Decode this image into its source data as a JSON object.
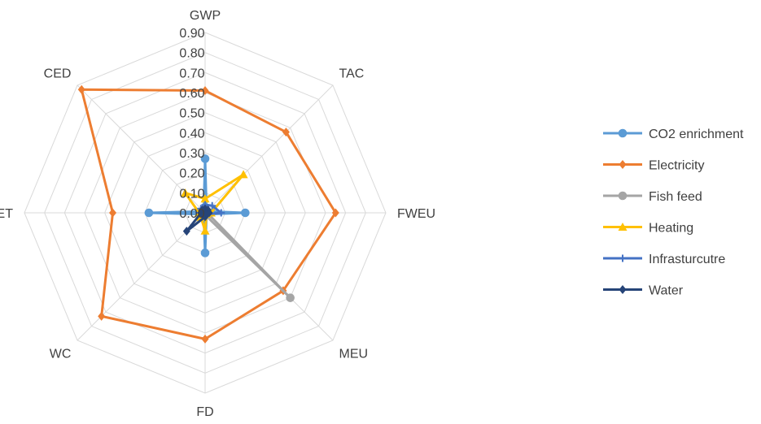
{
  "chart_data": {
    "type": "radar",
    "axes": [
      "GWP",
      "TAC",
      "FWEU",
      "MEU",
      "FD",
      "WC",
      "ET",
      "CED"
    ],
    "ticks": [
      "0.00",
      "0.10",
      "0.20",
      "0.30",
      "0.40",
      "0.50",
      "0.60",
      "0.70",
      "0.80",
      "0.90"
    ],
    "rlim": [
      0,
      0.9
    ],
    "grid": true,
    "legend_position": "right",
    "series": [
      {
        "name": "CO2 enrichment",
        "color": "#5b9bd5",
        "marker": "circle",
        "values": [
          0.27,
          0.01,
          0.2,
          0.01,
          0.2,
          0.01,
          0.28,
          0.01
        ]
      },
      {
        "name": "Electricity",
        "color": "#ed7d31",
        "marker": "diamond",
        "values": [
          0.61,
          0.57,
          0.65,
          0.55,
          0.63,
          0.73,
          0.46,
          0.87
        ]
      },
      {
        "name": "Fish feed",
        "color": "#a5a5a5",
        "marker": "circle",
        "values": [
          0.02,
          0.01,
          0.01,
          0.6,
          0.01,
          0.01,
          0.01,
          0.01
        ]
      },
      {
        "name": "Heating",
        "color": "#ffc000",
        "marker": "triangle",
        "values": [
          0.07,
          0.27,
          0.03,
          0.01,
          0.09,
          0.03,
          0.03,
          0.14
        ]
      },
      {
        "name": "Infrasturcutre",
        "color": "#4472c4",
        "marker": "plus",
        "values": [
          0.04,
          0.05,
          0.08,
          0.01,
          0.01,
          0.02,
          0.03,
          0.03
        ]
      },
      {
        "name": "Water",
        "color": "#264478",
        "marker": "diamond",
        "values": [
          0.02,
          0.02,
          0.02,
          0.01,
          0.02,
          0.13,
          0.02,
          0.02
        ]
      }
    ]
  }
}
